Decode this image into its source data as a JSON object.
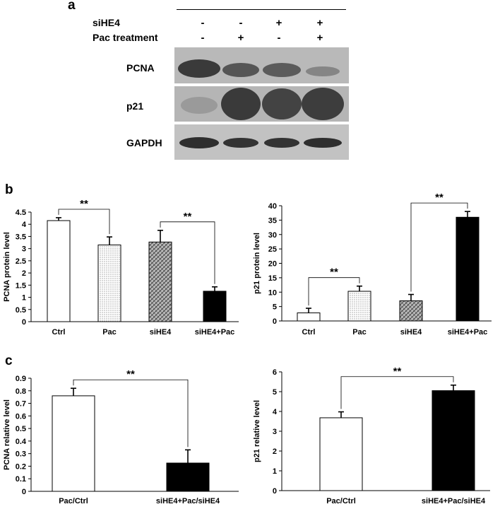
{
  "panels": {
    "a": "a",
    "b": "b",
    "c": "c"
  },
  "western_blot": {
    "condition_rows": [
      {
        "label": "siHE4",
        "signs": [
          "-",
          "-",
          "+",
          "+"
        ]
      },
      {
        "label": "Pac treatment",
        "signs": [
          "-",
          "+",
          "-",
          "+"
        ]
      }
    ],
    "bands": [
      "PCNA",
      "p21",
      "GAPDH"
    ]
  },
  "chart_data": [
    {
      "type": "bar",
      "categories": [
        "Ctrl",
        "Pac",
        "siHE4",
        "siHE4+Pac"
      ],
      "values": [
        4.15,
        3.15,
        3.27,
        1.25
      ],
      "errors": [
        0.12,
        0.33,
        0.48,
        0.18
      ],
      "fills": [
        "white",
        "dots",
        "hatch",
        "black"
      ],
      "ylabel": "PCNA protein level",
      "ylim": [
        0,
        4.5
      ],
      "yticks": [
        "0",
        "0.5",
        "1",
        "1.5",
        "2",
        "2.5",
        "3",
        "3.5",
        "4",
        "4.5"
      ],
      "significance": [
        {
          "from": 0,
          "to": 1,
          "label": "**"
        },
        {
          "from": 2,
          "to": 3,
          "label": "**"
        }
      ]
    },
    {
      "type": "bar",
      "categories": [
        "Ctrl",
        "Pac",
        "siHE4",
        "siHE4+Pac"
      ],
      "values": [
        2.8,
        10.3,
        7.0,
        36.0
      ],
      "errors": [
        1.6,
        1.8,
        2.2,
        2.0
      ],
      "fills": [
        "white",
        "dots",
        "hatch",
        "black"
      ],
      "ylabel": "p21 protein level",
      "ylim": [
        0,
        40
      ],
      "yticks": [
        "0",
        "5",
        "10",
        "15",
        "20",
        "25",
        "30",
        "35",
        "40"
      ],
      "significance": [
        {
          "from": 0,
          "to": 1,
          "label": "**"
        },
        {
          "from": 2,
          "to": 3,
          "label": "**"
        }
      ]
    },
    {
      "type": "bar",
      "categories": [
        "Pac/Ctrl",
        "siHE4+Pac/siHE4"
      ],
      "values": [
        0.76,
        0.225
      ],
      "errors": [
        0.06,
        0.105
      ],
      "fills": [
        "white",
        "black"
      ],
      "ylabel": "PCNA relative level",
      "ylim": [
        0,
        0.9
      ],
      "yticks": [
        "0",
        "0.1",
        "0.2",
        "0.3",
        "0.4",
        "0.5",
        "0.6",
        "0.7",
        "0.8",
        "0.9"
      ],
      "significance": [
        {
          "from": 0,
          "to": 1,
          "label": "**"
        }
      ]
    },
    {
      "type": "bar",
      "categories": [
        "Pac/Ctrl",
        "siHE4+Pac/siHE4"
      ],
      "values": [
        3.68,
        5.05
      ],
      "errors": [
        0.3,
        0.28
      ],
      "fills": [
        "white",
        "black"
      ],
      "ylabel": "p21 relative level",
      "ylim": [
        0,
        6
      ],
      "yticks": [
        "0",
        "1",
        "2",
        "3",
        "4",
        "5",
        "6"
      ],
      "significance": [
        {
          "from": 0,
          "to": 1,
          "label": "**"
        }
      ]
    }
  ]
}
